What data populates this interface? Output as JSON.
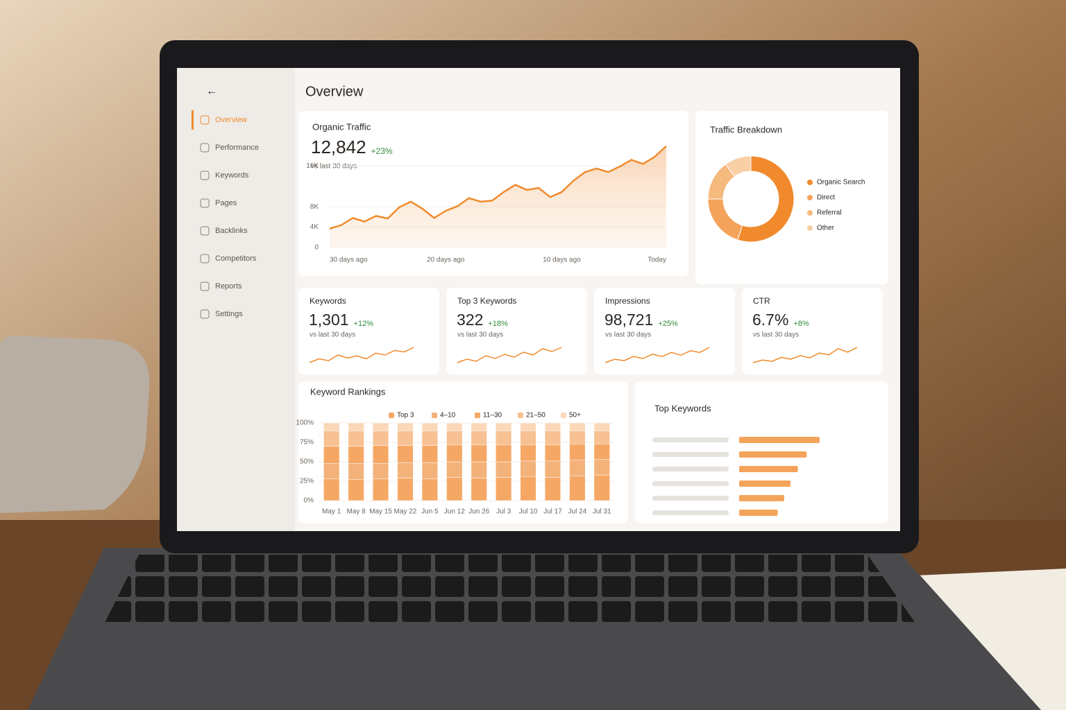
{
  "page_title": "Overview",
  "nav": [
    "Overview",
    "Performance",
    "Keywords",
    "Pages",
    "Backlinks",
    "Competitors",
    "Reports",
    "Settings"
  ],
  "active_nav": 0,
  "traffic_summary": {
    "value": "12,842",
    "change": "+23%",
    "note": "vs last 30 days"
  },
  "kpis": [
    {
      "label": "Keywords",
      "value": "1,301",
      "change": "+12%",
      "note": "vs last 30 days",
      "trend": [
        3,
        4,
        3.5,
        5,
        4.2,
        4.8,
        4,
        5.5,
        5,
        6.2,
        5.8,
        7
      ]
    },
    {
      "label": "Top 3 Keywords",
      "value": "322",
      "change": "+18%",
      "note": "vs last 30 days",
      "trend": [
        3,
        3.5,
        3.2,
        4,
        3.6,
        4.2,
        3.8,
        4.5,
        4.1,
        5,
        4.6,
        5.2
      ]
    },
    {
      "label": "Impressions",
      "value": "98,721",
      "change": "+25%",
      "note": "vs last 30 days",
      "trend": [
        2,
        3,
        2.6,
        3.8,
        3.2,
        4.5,
        3.8,
        5,
        4.2,
        5.5,
        5,
        6.5
      ]
    },
    {
      "label": "CTR",
      "value": "6.7%",
      "change": "+8%",
      "note": "vs last 30 days",
      "trend": [
        2,
        2.6,
        2.3,
        3.2,
        2.8,
        3.6,
        3.1,
        4.2,
        3.8,
        5.2,
        4.4,
        5.5
      ]
    }
  ],
  "chart_data": [
    {
      "type": "line",
      "title": "Organic Traffic",
      "color": "#f08a2c",
      "categories": [
        "30 days ago",
        null,
        null,
        null,
        null,
        null,
        null,
        null,
        null,
        null,
        "20 days ago",
        null,
        null,
        null,
        null,
        null,
        null,
        null,
        null,
        null,
        "10 days ago",
        null,
        null,
        null,
        null,
        null,
        null,
        null,
        null,
        "Today"
      ],
      "values": [
        3700,
        4400,
        5800,
        5100,
        6200,
        5700,
        7900,
        9000,
        7600,
        5800,
        7200,
        8100,
        9700,
        9000,
        9200,
        10900,
        12300,
        11300,
        11700,
        9900,
        10900,
        13100,
        14800,
        15500,
        14800,
        15900,
        17200,
        16400,
        17800,
        19900
      ],
      "ylim": [
        0,
        20000
      ],
      "yticks": [
        0,
        {
          "value": 4000,
          "label": "4K"
        },
        {
          "value": 8000,
          "label": "8K"
        },
        {
          "value": 16000,
          "label": "16K"
        }
      ],
      "grid": true
    },
    {
      "type": "pie",
      "title": "Traffic Breakdown",
      "categories": [
        "Organic Search",
        "Direct",
        "Referral",
        "Other"
      ],
      "values": [
        55,
        20,
        15,
        10
      ],
      "colors": [
        "#f08a2c",
        "#f4a45a",
        "#f6b97e",
        "#f9cfa6"
      ]
    },
    {
      "type": "stacked_bar",
      "title": "Keyword Rankings",
      "categories": [
        "May 1",
        "May 8",
        "May 15",
        "May 22",
        "Jun 5",
        "Jun 12",
        "Jun 26",
        "Jul 3",
        "Jul 10",
        "Jul 17",
        "Jul 24",
        "Jul 31"
      ],
      "series": [
        {
          "name": "Top 3",
          "color": "#f5a865",
          "values": [
            28,
            27,
            28,
            29,
            28,
            30,
            29,
            30,
            31,
            30,
            32,
            33
          ]
        },
        {
          "name": "4–10",
          "color": "#f3b27a",
          "values": [
            20,
            21,
            20,
            20,
            21,
            20,
            21,
            20,
            20,
            21,
            20,
            20
          ]
        },
        {
          "name": "11–30",
          "color": "#f5a865",
          "values": [
            22,
            22,
            23,
            22,
            22,
            22,
            22,
            22,
            21,
            21,
            21,
            20
          ]
        },
        {
          "name": "21–50",
          "color": "#f7c193",
          "values": [
            20,
            20,
            19,
            19,
            19,
            18,
            18,
            18,
            18,
            18,
            17,
            17
          ]
        },
        {
          "name": "50+",
          "color": "#fad8b9",
          "values": [
            10,
            10,
            10,
            10,
            10,
            10,
            10,
            10,
            10,
            10,
            10,
            10
          ]
        }
      ],
      "ylim": [
        0,
        100
      ],
      "yticks": [
        {
          "value": 0,
          "label": "0%"
        },
        {
          "value": 25,
          "label": "25%"
        },
        {
          "value": 50,
          "label": "50%"
        },
        {
          "value": 75,
          "label": "75%"
        },
        {
          "value": 100,
          "label": "100%"
        }
      ]
    },
    {
      "type": "hbar",
      "title": "Top Keywords",
      "color": "#f4a45a",
      "values": [
        100,
        84,
        73,
        64,
        56,
        48
      ]
    }
  ]
}
